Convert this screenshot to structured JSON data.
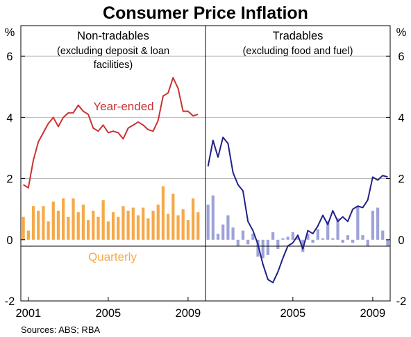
{
  "chart_data": {
    "type": "bar+line",
    "title": "Consumer Price Inflation",
    "unit_left": "%",
    "unit_right": "%",
    "ylim": [
      -2,
      7
    ],
    "yticks": [
      "6",
      "4",
      "2",
      "0",
      "-2"
    ],
    "source": "Sources: ABS; RBA",
    "colors": {
      "nt_line": "#c83232",
      "nt_bar": "#f5a94a",
      "tr_line": "#20208a",
      "tr_bar": "#9da3d8",
      "grid": "#b8b8b8"
    },
    "panels": [
      {
        "title": "Non-tradables",
        "subtitle_lines": [
          "(excluding deposit & loan",
          "facilities)"
        ],
        "xticks": [
          "2001",
          "2005",
          "2009"
        ],
        "x_start": 2000.75,
        "x_end": 2009.5,
        "series": [
          {
            "name": "Year-ended",
            "type": "line",
            "color": "#c83232",
            "values": [
              [
                2000.75,
                1.8
              ],
              [
                2001.0,
                1.7
              ],
              [
                2001.25,
                2.6
              ],
              [
                2001.5,
                3.2
              ],
              [
                2001.75,
                3.5
              ],
              [
                2002.0,
                3.8
              ],
              [
                2002.25,
                4.0
              ],
              [
                2002.5,
                3.7
              ],
              [
                2002.75,
                4.0
              ],
              [
                2003.0,
                4.15
              ],
              [
                2003.25,
                4.15
              ],
              [
                2003.5,
                4.4
              ],
              [
                2003.75,
                4.2
              ],
              [
                2004.0,
                4.1
              ],
              [
                2004.25,
                3.65
              ],
              [
                2004.5,
                3.55
              ],
              [
                2004.75,
                3.75
              ],
              [
                2005.0,
                3.5
              ],
              [
                2005.25,
                3.55
              ],
              [
                2005.5,
                3.5
              ],
              [
                2005.75,
                3.3
              ],
              [
                2006.0,
                3.65
              ],
              [
                2006.25,
                3.75
              ],
              [
                2006.5,
                3.85
              ],
              [
                2006.75,
                3.75
              ],
              [
                2007.0,
                3.6
              ],
              [
                2007.25,
                3.55
              ],
              [
                2007.5,
                3.9
              ],
              [
                2007.75,
                4.7
              ],
              [
                2008.0,
                4.8
              ],
              [
                2008.25,
                5.3
              ],
              [
                2008.5,
                4.95
              ],
              [
                2008.75,
                4.2
              ],
              [
                2009.0,
                4.2
              ],
              [
                2009.25,
                4.05
              ],
              [
                2009.5,
                4.1
              ]
            ]
          },
          {
            "name": "Quarterly",
            "type": "bar",
            "color": "#f5a94a",
            "values": [
              [
                2000.75,
                0.75
              ],
              [
                2001.0,
                0.3
              ],
              [
                2001.25,
                1.1
              ],
              [
                2001.5,
                0.95
              ],
              [
                2001.75,
                1.1
              ],
              [
                2002.0,
                0.6
              ],
              [
                2002.25,
                1.25
              ],
              [
                2002.5,
                0.95
              ],
              [
                2002.75,
                1.35
              ],
              [
                2003.0,
                0.75
              ],
              [
                2003.25,
                1.35
              ],
              [
                2003.5,
                0.9
              ],
              [
                2003.75,
                1.15
              ],
              [
                2004.0,
                0.65
              ],
              [
                2004.25,
                0.95
              ],
              [
                2004.5,
                0.75
              ],
              [
                2004.75,
                1.3
              ],
              [
                2005.0,
                0.6
              ],
              [
                2005.25,
                0.9
              ],
              [
                2005.5,
                0.75
              ],
              [
                2005.75,
                1.1
              ],
              [
                2006.0,
                0.95
              ],
              [
                2006.25,
                1.05
              ],
              [
                2006.5,
                0.8
              ],
              [
                2006.75,
                1.05
              ],
              [
                2007.0,
                0.7
              ],
              [
                2007.25,
                0.95
              ],
              [
                2007.5,
                1.15
              ],
              [
                2007.75,
                1.75
              ],
              [
                2008.0,
                0.85
              ],
              [
                2008.25,
                1.5
              ],
              [
                2008.5,
                0.8
              ],
              [
                2008.75,
                1.0
              ],
              [
                2009.0,
                0.65
              ],
              [
                2009.25,
                1.35
              ],
              [
                2009.5,
                0.9
              ]
            ]
          }
        ]
      },
      {
        "title": "Tradables",
        "subtitle_lines": [
          "(excluding food and fuel)"
        ],
        "xticks": [
          "2005",
          "2009"
        ],
        "x_start": 2000.75,
        "x_end": 2009.5,
        "series": [
          {
            "name": "",
            "type": "line",
            "color": "#20208a",
            "values": [
              [
                2000.75,
                2.4
              ],
              [
                2001.0,
                3.25
              ],
              [
                2001.25,
                2.7
              ],
              [
                2001.5,
                3.35
              ],
              [
                2001.75,
                3.15
              ],
              [
                2002.0,
                2.2
              ],
              [
                2002.25,
                1.8
              ],
              [
                2002.5,
                1.6
              ],
              [
                2002.75,
                0.6
              ],
              [
                2003.0,
                0.3
              ],
              [
                2003.25,
                -0.15
              ],
              [
                2003.5,
                -0.8
              ],
              [
                2003.75,
                -1.3
              ],
              [
                2004.0,
                -1.4
              ],
              [
                2004.25,
                -1.05
              ],
              [
                2004.5,
                -0.6
              ],
              [
                2004.75,
                -0.2
              ],
              [
                2005.0,
                -0.1
              ],
              [
                2005.25,
                0.15
              ],
              [
                2005.5,
                -0.3
              ],
              [
                2005.75,
                0.3
              ],
              [
                2006.0,
                0.2
              ],
              [
                2006.25,
                0.45
              ],
              [
                2006.5,
                0.8
              ],
              [
                2006.75,
                0.5
              ],
              [
                2007.0,
                0.95
              ],
              [
                2007.25,
                0.6
              ],
              [
                2007.5,
                0.75
              ],
              [
                2007.75,
                0.6
              ],
              [
                2008.0,
                1.0
              ],
              [
                2008.25,
                1.1
              ],
              [
                2008.5,
                1.05
              ],
              [
                2008.75,
                1.3
              ],
              [
                2009.0,
                2.05
              ],
              [
                2009.25,
                1.95
              ],
              [
                2009.5,
                2.1
              ],
              [
                2009.75,
                2.05
              ]
            ]
          },
          {
            "name": "",
            "type": "bar",
            "color": "#9da3d8",
            "values": [
              [
                2000.75,
                1.15
              ],
              [
                2001.0,
                1.45
              ],
              [
                2001.25,
                0.2
              ],
              [
                2001.5,
                0.5
              ],
              [
                2001.75,
                0.8
              ],
              [
                2002.0,
                0.4
              ],
              [
                2002.25,
                -0.2
              ],
              [
                2002.5,
                0.3
              ],
              [
                2002.75,
                -0.15
              ],
              [
                2003.0,
                0.2
              ],
              [
                2003.25,
                -0.55
              ],
              [
                2003.5,
                -0.6
              ],
              [
                2003.75,
                -0.5
              ],
              [
                2004.0,
                0.25
              ],
              [
                2004.25,
                -0.3
              ],
              [
                2004.5,
                0.05
              ],
              [
                2004.75,
                0.1
              ],
              [
                2005.0,
                0.25
              ],
              [
                2005.25,
                0.1
              ],
              [
                2005.5,
                -0.4
              ],
              [
                2005.75,
                0.2
              ],
              [
                2006.0,
                -0.1
              ],
              [
                2006.25,
                0.35
              ],
              [
                2006.5,
                0.05
              ],
              [
                2006.75,
                0.6
              ],
              [
                2007.0,
                0.05
              ],
              [
                2007.25,
                0.7
              ],
              [
                2007.5,
                -0.1
              ],
              [
                2007.75,
                0.15
              ],
              [
                2008.0,
                -0.1
              ],
              [
                2008.25,
                1.1
              ],
              [
                2008.5,
                0.15
              ],
              [
                2008.75,
                -0.2
              ],
              [
                2009.0,
                0.95
              ],
              [
                2009.25,
                1.05
              ],
              [
                2009.5,
                0.3
              ],
              [
                2009.75,
                -0.2
              ]
            ]
          }
        ]
      }
    ],
    "series_labels": {
      "year_ended": "Year-ended",
      "quarterly": "Quarterly"
    }
  }
}
